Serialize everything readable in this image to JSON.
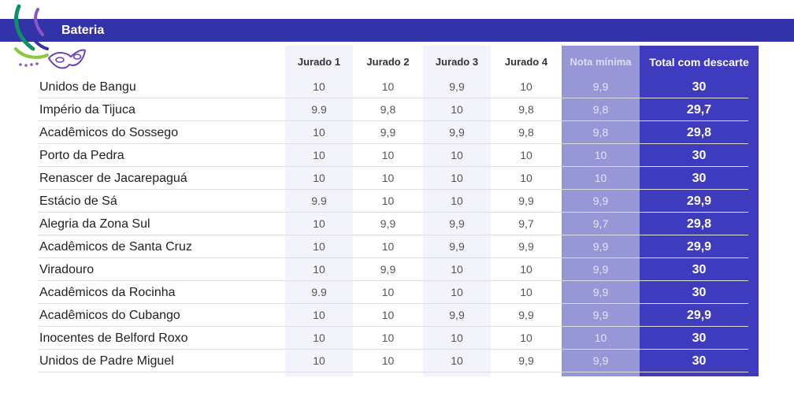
{
  "header": {
    "title": "Bateria"
  },
  "colors": {
    "banner": "#3432a8",
    "min_column": "#9797d8",
    "total_column": "#3f3bbf",
    "judge_stripe": "#f3f3fb"
  },
  "icons": [
    "carnival-streamers-icon",
    "carnival-mask-icon"
  ],
  "chart_data": {
    "type": "table",
    "columns": [
      "",
      "Jurado 1",
      "Jurado 2",
      "Jurado 3",
      "Jurado 4",
      "Nota mínima",
      "Total com descarte"
    ],
    "rows": [
      [
        "Unidos de Bangu",
        "10",
        "10",
        "9,9",
        "10",
        "9,9",
        "30"
      ],
      [
        "Império da Tijuca",
        "9.9",
        "9,8",
        "10",
        "9,8",
        "9,8",
        "29,7"
      ],
      [
        "Acadêmicos do Sossego",
        "10",
        "9,9",
        "9,9",
        "9,8",
        "9,8",
        "29,8"
      ],
      [
        "Porto da Pedra",
        "10",
        "10",
        "10",
        "10",
        "10",
        "30"
      ],
      [
        "Renascer de Jacarepaguá",
        "10",
        "10",
        "10",
        "10",
        "10",
        "30"
      ],
      [
        "Estácio de Sá",
        "9.9",
        "10",
        "10",
        "9,9",
        "9,9",
        "29,9"
      ],
      [
        "Alegria da Zona Sul",
        "10",
        "9,9",
        "9,9",
        "9,7",
        "9,7",
        "29,8"
      ],
      [
        "Acadêmicos de Santa Cruz",
        "10",
        "10",
        "9,9",
        "9,9",
        "9,9",
        "29,9"
      ],
      [
        "Viradouro",
        "10",
        "9,9",
        "10",
        "10",
        "9,9",
        "30"
      ],
      [
        "Acadêmicos da Rocinha",
        "9.9",
        "10",
        "10",
        "10",
        "9,9",
        "30"
      ],
      [
        "Acadêmicos do Cubango",
        "10",
        "10",
        "9,9",
        "9,9",
        "9,9",
        "29,9"
      ],
      [
        "Inocentes de Belford Roxo",
        "10",
        "10",
        "10",
        "10",
        "10",
        "30"
      ],
      [
        "Unidos de Padre Miguel",
        "10",
        "10",
        "10",
        "9,9",
        "9,9",
        "30"
      ]
    ]
  }
}
